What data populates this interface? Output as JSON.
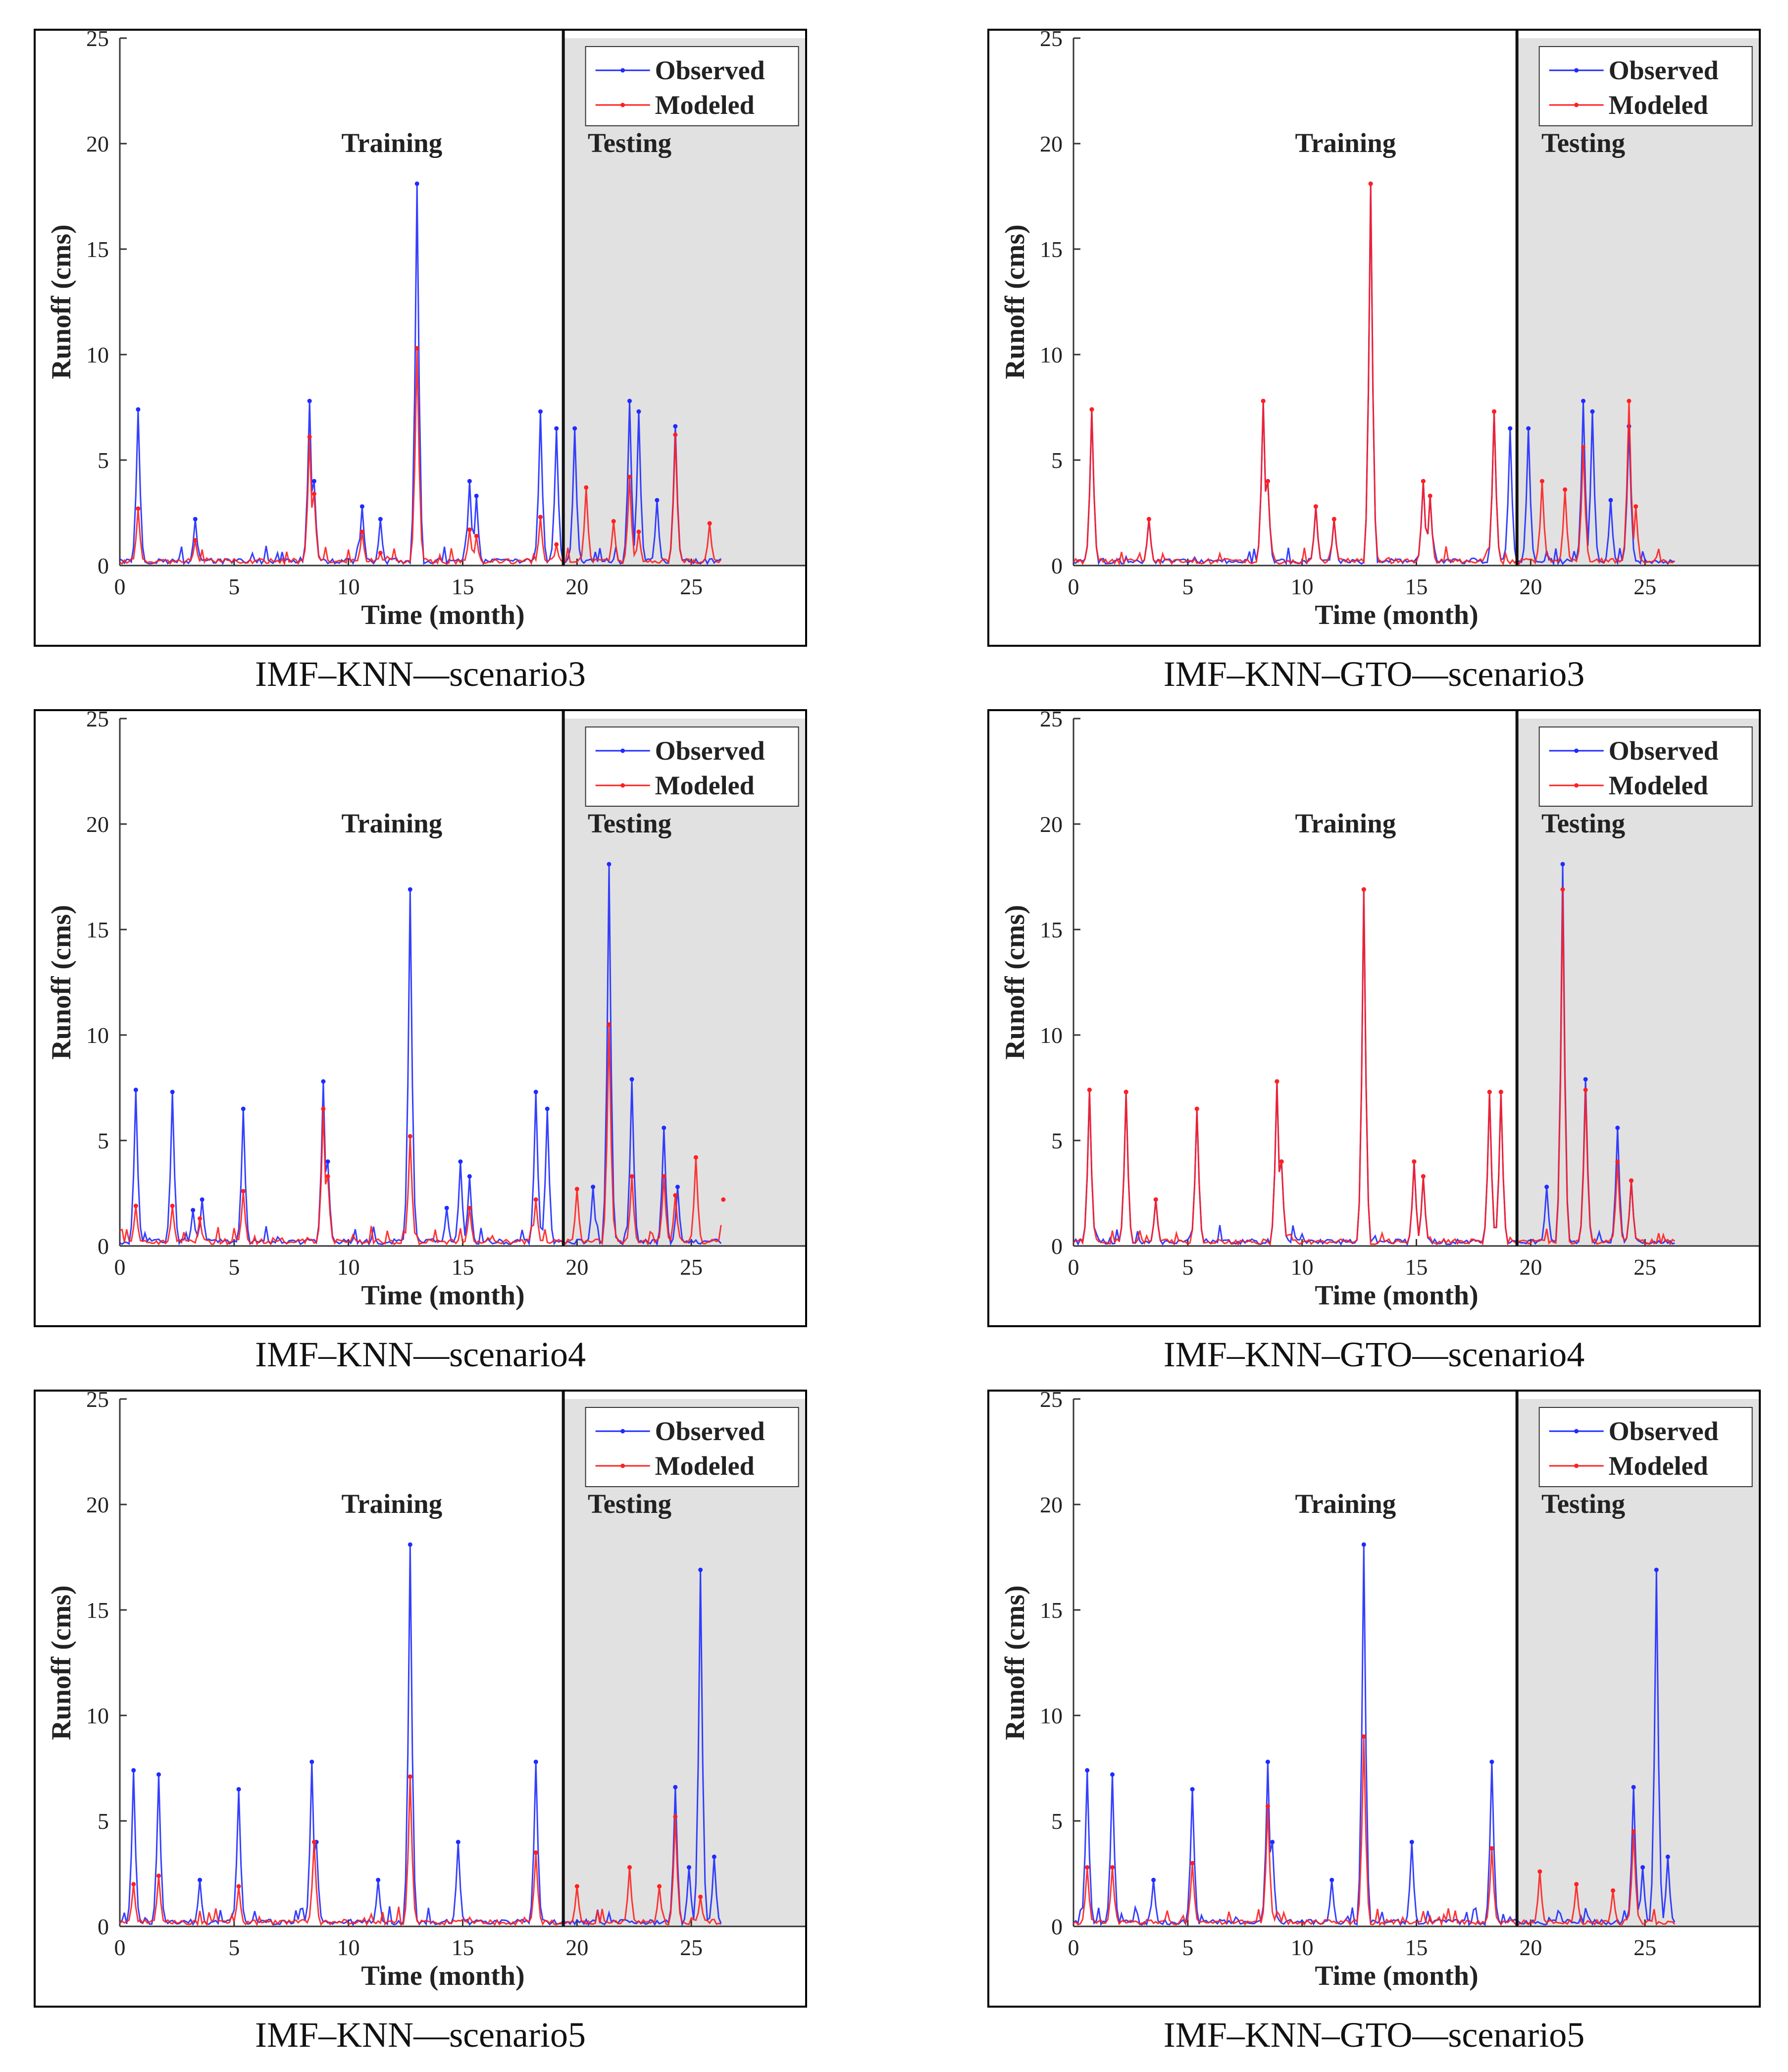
{
  "chart_data": [
    {
      "type": "line",
      "caption": "IMF–KNN—scenario3",
      "xlabel": "Time (month)",
      "ylabel": "Runoff (cms)",
      "xlim": [
        0,
        30
      ],
      "ylim": [
        0,
        25
      ],
      "xticks": [
        "0",
        "5",
        "10",
        "15",
        "20",
        "25"
      ],
      "yticks": [
        "0",
        "5",
        "10",
        "15",
        "20",
        "25"
      ],
      "split_x": 19.4,
      "training_label": "Training",
      "testing_label": "Testing",
      "legend": [
        "Observed",
        "Modeled"
      ],
      "series": [
        {
          "name": "Observed",
          "color": "#1f2bff",
          "x": [
            0.8,
            3.3,
            8.3,
            8.5,
            10.6,
            11.4,
            13.0,
            15.3,
            15.6,
            18.4,
            19.1,
            19.9,
            22.3,
            22.7,
            23.5,
            24.3
          ],
          "y": [
            7.4,
            2.2,
            7.8,
            4.0,
            2.8,
            2.2,
            18.1,
            4.0,
            3.3,
            7.3,
            6.5,
            6.5,
            7.8,
            7.3,
            3.1,
            6.6
          ]
        },
        {
          "name": "Modeled",
          "color": "#ff2020",
          "x": [
            0.8,
            3.3,
            8.3,
            8.5,
            10.6,
            11.4,
            13.0,
            15.3,
            15.6,
            18.4,
            19.1,
            20.4,
            21.6,
            22.3,
            22.7,
            24.3,
            25.8
          ],
          "y": [
            2.7,
            1.2,
            6.1,
            3.4,
            1.6,
            0.6,
            10.3,
            1.7,
            1.4,
            2.3,
            1.0,
            3.7,
            2.1,
            4.2,
            1.6,
            6.2,
            2.0
          ]
        }
      ]
    },
    {
      "type": "line",
      "caption": "IMF–KNN–GTO—scenario3",
      "xlabel": "Time (month)",
      "ylabel": "Runoff (cms)",
      "xlim": [
        0,
        30
      ],
      "ylim": [
        0,
        25
      ],
      "xticks": [
        "0",
        "5",
        "10",
        "15",
        "20",
        "25"
      ],
      "yticks": [
        "0",
        "5",
        "10",
        "15",
        "20",
        "25"
      ],
      "split_x": 19.4,
      "training_label": "Training",
      "testing_label": "Testing",
      "legend": [
        "Observed",
        "Modeled"
      ],
      "series": [
        {
          "name": "Observed",
          "color": "#1f2bff",
          "x": [
            0.8,
            3.3,
            8.3,
            8.5,
            10.6,
            11.4,
            13.0,
            15.3,
            15.6,
            18.4,
            19.1,
            19.9,
            22.3,
            22.7,
            23.5,
            24.3
          ],
          "y": [
            7.4,
            2.2,
            7.8,
            4.0,
            2.8,
            2.2,
            18.1,
            4.0,
            3.3,
            7.3,
            6.5,
            6.5,
            7.8,
            7.3,
            3.1,
            6.6
          ]
        },
        {
          "name": "Modeled",
          "color": "#ff2020",
          "x": [
            0.8,
            3.3,
            8.3,
            8.5,
            10.6,
            11.4,
            13.0,
            15.3,
            15.6,
            18.4,
            20.5,
            21.5,
            22.3,
            24.3,
            24.6
          ],
          "y": [
            7.4,
            2.2,
            7.8,
            4.0,
            2.8,
            2.2,
            18.1,
            4.0,
            3.3,
            7.3,
            4.0,
            3.6,
            5.6,
            7.8,
            2.8
          ]
        }
      ]
    },
    {
      "type": "line",
      "caption": "IMF–KNN—scenario4",
      "xlabel": "Time (month)",
      "ylabel": "Runoff (cms)",
      "xlim": [
        0,
        30
      ],
      "ylim": [
        0,
        25
      ],
      "xticks": [
        "0",
        "5",
        "10",
        "15",
        "20",
        "25"
      ],
      "yticks": [
        "0",
        "5",
        "10",
        "15",
        "20",
        "25"
      ],
      "split_x": 19.4,
      "training_label": "Training",
      "testing_label": "Testing",
      "legend": [
        "Observed",
        "Modeled"
      ],
      "series": [
        {
          "name": "Observed",
          "color": "#1f2bff",
          "x": [
            0.7,
            2.3,
            3.2,
            3.6,
            5.4,
            8.9,
            9.1,
            12.7,
            14.3,
            14.9,
            15.3,
            18.2,
            18.7,
            20.7,
            21.4,
            22.4,
            23.8,
            24.4
          ],
          "y": [
            7.4,
            7.3,
            1.7,
            2.2,
            6.5,
            7.8,
            4.0,
            16.9,
            1.8,
            4.0,
            3.3,
            7.3,
            6.5,
            2.8,
            18.1,
            7.9,
            5.6,
            2.8
          ]
        },
        {
          "name": "Modeled",
          "color": "#ff2020",
          "x": [
            0.7,
            2.3,
            3.5,
            5.4,
            8.9,
            9.1,
            12.7,
            15.3,
            18.2,
            20.0,
            21.4,
            22.4,
            23.8,
            24.3,
            25.2,
            26.4
          ],
          "y": [
            1.9,
            1.9,
            1.3,
            2.6,
            6.5,
            3.3,
            5.2,
            1.8,
            2.2,
            2.7,
            10.5,
            3.3,
            3.3,
            2.4,
            4.2,
            2.2
          ]
        }
      ]
    },
    {
      "type": "line",
      "caption": "IMF–KNN–GTO—scenario4",
      "xlabel": "Time (month)",
      "ylabel": "Runoff (cms)",
      "xlim": [
        0,
        30
      ],
      "ylim": [
        0,
        25
      ],
      "xticks": [
        "0",
        "5",
        "10",
        "15",
        "20",
        "25"
      ],
      "yticks": [
        "0",
        "5",
        "10",
        "15",
        "20",
        "25"
      ],
      "split_x": 19.4,
      "training_label": "Training",
      "testing_label": "Testing",
      "legend": [
        "Observed",
        "Modeled"
      ],
      "series": [
        {
          "name": "Observed",
          "color": "#1f2bff",
          "x": [
            0.7,
            2.3,
            3.6,
            5.4,
            8.9,
            9.1,
            12.7,
            14.9,
            15.3,
            18.2,
            18.7,
            20.7,
            21.4,
            22.4,
            23.8,
            24.4
          ],
          "y": [
            7.4,
            7.3,
            2.2,
            6.5,
            7.8,
            4.0,
            16.9,
            4.0,
            3.3,
            7.3,
            7.3,
            2.8,
            18.1,
            7.9,
            5.6,
            3.1
          ]
        },
        {
          "name": "Modeled",
          "color": "#ff2020",
          "x": [
            0.7,
            2.3,
            3.6,
            5.4,
            8.9,
            9.1,
            12.7,
            14.9,
            15.3,
            18.2,
            18.7,
            21.4,
            22.4,
            23.8,
            24.4
          ],
          "y": [
            7.4,
            7.3,
            2.2,
            6.5,
            7.8,
            4.0,
            16.9,
            4.0,
            3.3,
            7.3,
            7.3,
            16.9,
            7.4,
            4.0,
            3.1
          ]
        }
      ]
    },
    {
      "type": "line",
      "caption": "IMF–KNN—scenario5",
      "xlabel": "Time (month)",
      "ylabel": "Runoff (cms)",
      "xlim": [
        0,
        30
      ],
      "ylim": [
        0,
        25
      ],
      "xticks": [
        "0",
        "5",
        "10",
        "15",
        "20",
        "25"
      ],
      "yticks": [
        "0",
        "5",
        "10",
        "15",
        "20",
        "25"
      ],
      "split_x": 19.4,
      "training_label": "Training",
      "testing_label": "Testing",
      "legend": [
        "Observed",
        "Modeled"
      ],
      "series": [
        {
          "name": "Observed",
          "color": "#1f2bff",
          "x": [
            0.6,
            1.7,
            3.5,
            5.2,
            8.4,
            8.6,
            11.3,
            12.7,
            14.8,
            18.2,
            24.3,
            24.9,
            25.4,
            26.0
          ],
          "y": [
            7.4,
            7.2,
            2.2,
            6.5,
            7.8,
            4.0,
            2.2,
            18.1,
            4.0,
            7.8,
            6.6,
            2.8,
            16.9,
            3.3
          ]
        },
        {
          "name": "Modeled",
          "color": "#ff2020",
          "x": [
            0.6,
            1.7,
            5.2,
            8.5,
            12.7,
            18.2,
            20.0,
            22.3,
            23.6,
            24.3,
            25.4
          ],
          "y": [
            2.0,
            2.4,
            1.9,
            4.0,
            7.1,
            3.5,
            1.9,
            2.8,
            1.9,
            5.2,
            1.4
          ]
        }
      ]
    },
    {
      "type": "line",
      "caption": "IMF–KNN–GTO—scenario5",
      "xlabel": "Time (month)",
      "ylabel": "Runoff (cms)",
      "xlim": [
        0,
        30
      ],
      "ylim": [
        0,
        25
      ],
      "xticks": [
        "0",
        "5",
        "10",
        "15",
        "20",
        "25"
      ],
      "yticks": [
        "0",
        "5",
        "10",
        "15",
        "20",
        "25"
      ],
      "split_x": 19.4,
      "training_label": "Training",
      "testing_label": "Testing",
      "legend": [
        "Observed",
        "Modeled"
      ],
      "series": [
        {
          "name": "Observed",
          "color": "#1f2bff",
          "x": [
            0.6,
            1.7,
            3.5,
            5.2,
            8.5,
            8.7,
            11.3,
            12.7,
            14.8,
            18.3,
            24.5,
            24.9,
            25.5,
            26.0
          ],
          "y": [
            7.4,
            7.2,
            2.2,
            6.5,
            7.8,
            4.0,
            2.2,
            18.1,
            4.0,
            7.8,
            6.6,
            2.8,
            16.9,
            3.3
          ]
        },
        {
          "name": "Modeled",
          "color": "#ff2020",
          "x": [
            0.6,
            1.7,
            5.2,
            8.5,
            12.7,
            18.3,
            20.4,
            22.0,
            23.6,
            24.5
          ],
          "y": [
            2.8,
            2.8,
            3.0,
            5.7,
            9.0,
            3.7,
            2.6,
            2.0,
            1.7,
            4.5
          ]
        }
      ]
    }
  ]
}
